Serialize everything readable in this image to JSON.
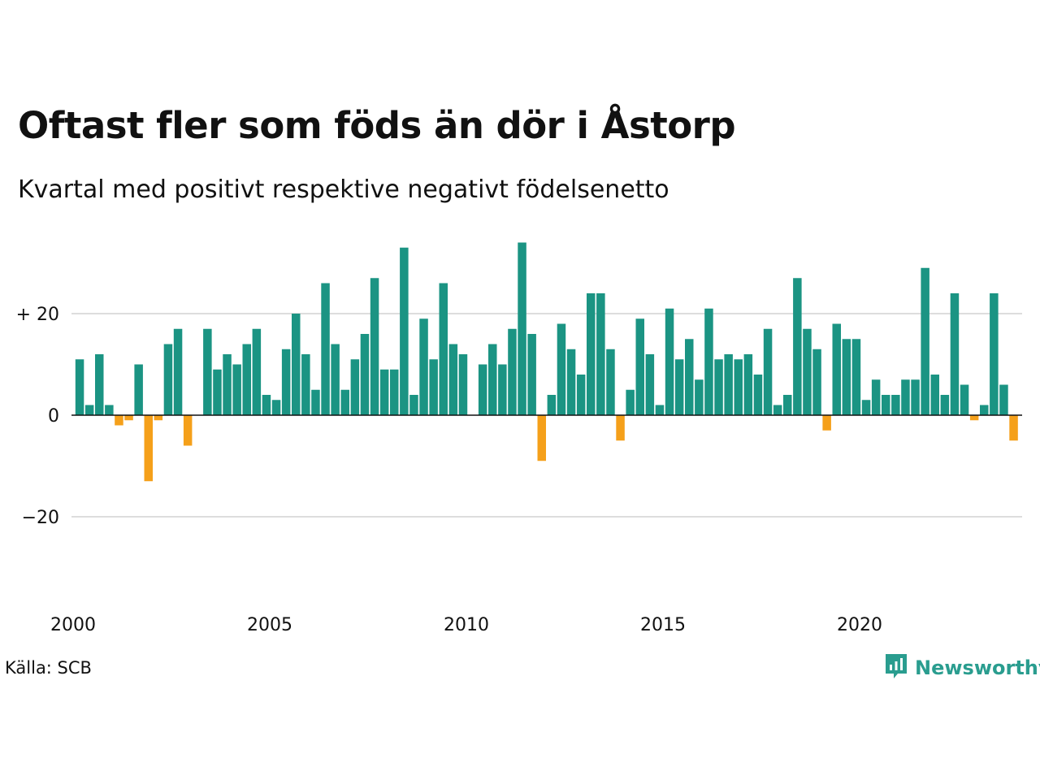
{
  "header": {
    "title": "Oftast fler som föds än dör i Åstorp",
    "subtitle": "Kvartal med positivt respektive negativt födelsenetto"
  },
  "footer": {
    "source": "Källa: SCB",
    "brand": "Newsworthy"
  },
  "colors": {
    "positive": "#1b9483",
    "negative": "#f5a01a",
    "grid": "#dddddd",
    "baseline": "#111111",
    "brand": "#2a9d8f"
  },
  "chart_data": {
    "type": "bar",
    "x_start_year": 2000,
    "periods_per_year": 4,
    "x_ticks": [
      "2000",
      "2005",
      "2010",
      "2015",
      "2020"
    ],
    "y_ticks": [
      {
        "value": 20,
        "label": "+ 20"
      },
      {
        "value": 0,
        "label": "0"
      },
      {
        "value": -20,
        "label": "−20"
      }
    ],
    "ylim": [
      -38,
      36
    ],
    "grid": true,
    "values": [
      11,
      2,
      12,
      2,
      -2,
      -1,
      10,
      -13,
      -1,
      14,
      17,
      -6,
      0,
      17,
      9,
      12,
      10,
      14,
      17,
      4,
      3,
      13,
      20,
      12,
      5,
      26,
      14,
      5,
      11,
      16,
      27,
      9,
      9,
      33,
      4,
      19,
      11,
      26,
      14,
      12,
      0,
      10,
      14,
      10,
      17,
      34,
      16,
      -9,
      4,
      18,
      13,
      8,
      24,
      24,
      13,
      -5,
      5,
      19,
      12,
      2,
      21,
      11,
      15,
      7,
      21,
      11,
      12,
      11,
      12,
      8,
      17,
      2,
      4,
      27,
      17,
      13,
      -3,
      18,
      15,
      15,
      3,
      7,
      4,
      4,
      7,
      7,
      29,
      8,
      4,
      24,
      6,
      -1,
      2,
      24,
      6,
      -5
    ]
  }
}
